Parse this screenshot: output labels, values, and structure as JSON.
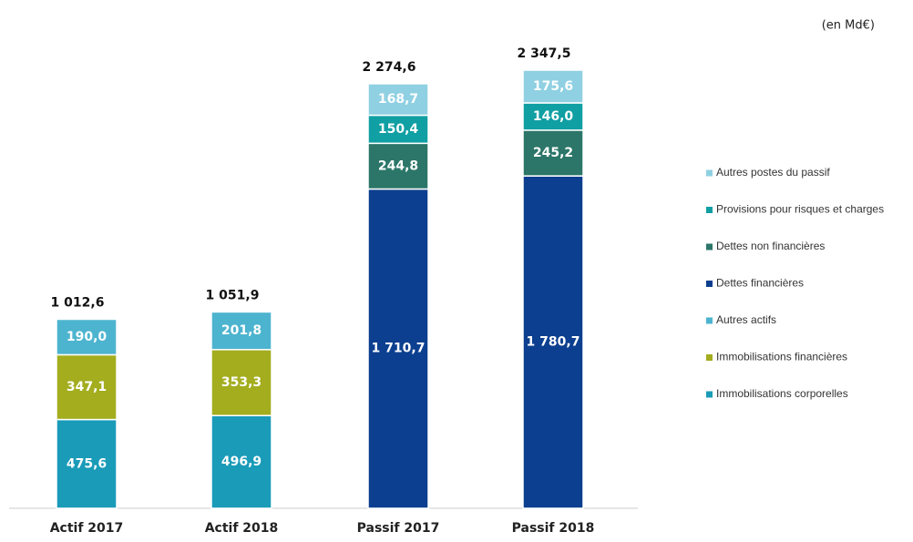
{
  "chart_data": {
    "type": "stacked_bar",
    "unit_note": "(en Md€)",
    "categories": [
      "Actif 2017",
      "Actif 2018",
      "Passif 2017",
      "Passif 2018"
    ],
    "totals": [
      1012.6,
      1051.9,
      2274.6,
      2347.5
    ],
    "totals_labels": [
      "1 012,6",
      "1 051,9",
      "2 274,6",
      "2 347,5"
    ],
    "series": [
      {
        "name": "Immobilisations corporelles",
        "color": "#1a9bb8",
        "values": [
          475.6,
          496.9,
          null,
          null
        ],
        "value_labels": [
          "475,6",
          "496,9",
          null,
          null
        ]
      },
      {
        "name": "Immobilisations financières",
        "color": "#a3ad1e",
        "values": [
          347.1,
          353.3,
          null,
          null
        ],
        "value_labels": [
          "347,1",
          "353,3",
          null,
          null
        ]
      },
      {
        "name": "Autres actifs",
        "color": "#4db4cf",
        "values": [
          190.0,
          201.8,
          null,
          null
        ],
        "value_labels": [
          "190,0",
          "201,8",
          null,
          null
        ]
      },
      {
        "name": "Dettes financières",
        "color": "#0c3f8f",
        "values": [
          null,
          null,
          1710.7,
          1780.7
        ],
        "value_labels": [
          null,
          null,
          "1 710,7",
          "1 780,7"
        ]
      },
      {
        "name": "Dettes non financières",
        "color": "#2b7668",
        "values": [
          null,
          null,
          244.8,
          245.2
        ],
        "value_labels": [
          null,
          null,
          "244,8",
          "245,2"
        ]
      },
      {
        "name": "Provisions pour risques et charges",
        "color": "#109fa3",
        "values": [
          null,
          null,
          150.4,
          146.0
        ],
        "value_labels": [
          null,
          null,
          "150,4",
          "146,0"
        ]
      },
      {
        "name": "Autres postes du passif",
        "color": "#8fd0e2",
        "values": [
          null,
          null,
          168.7,
          175.6
        ],
        "value_labels": [
          null,
          null,
          "168,7",
          "175,6"
        ]
      }
    ]
  }
}
